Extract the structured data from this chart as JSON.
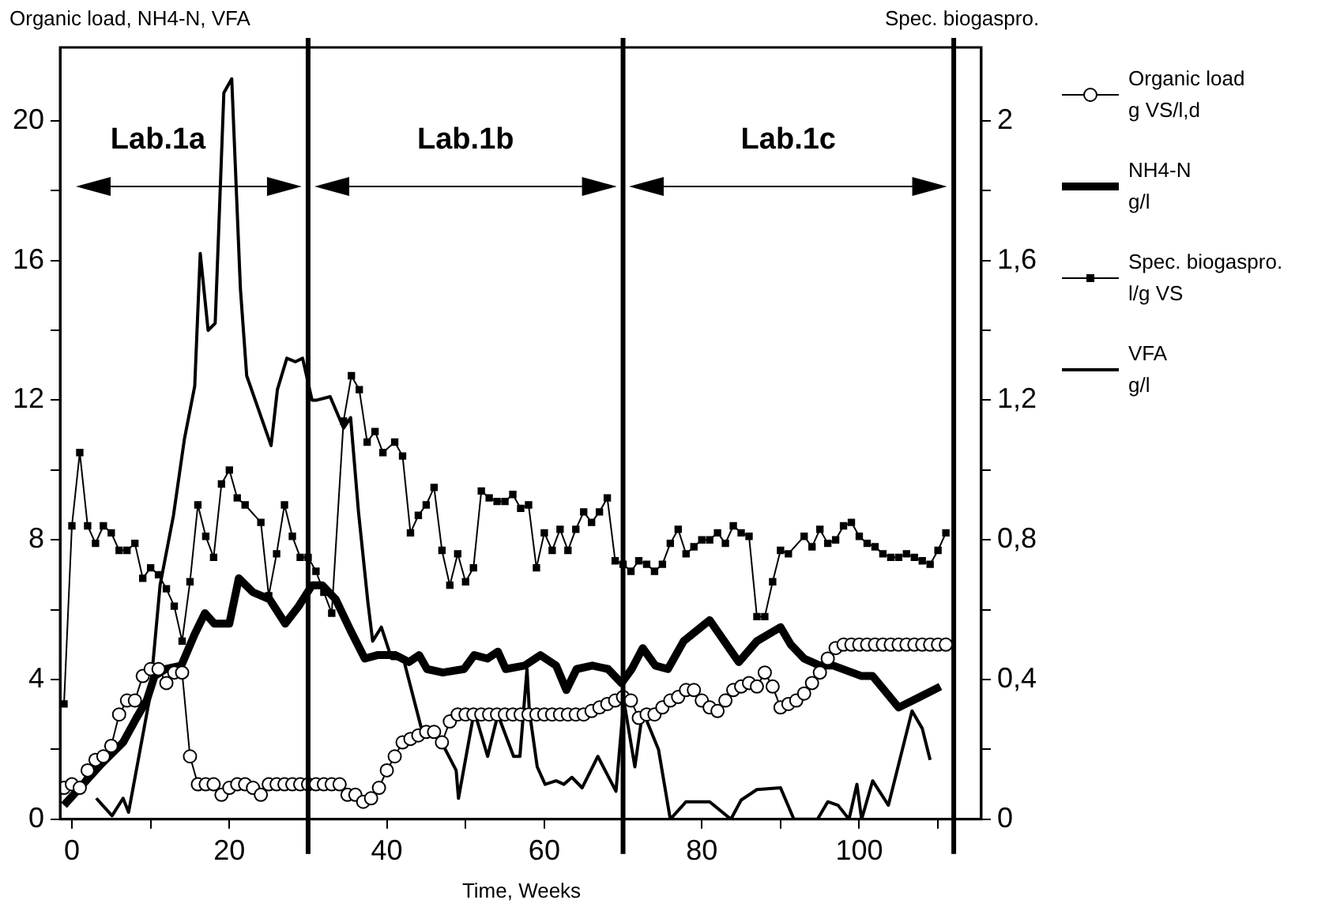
{
  "chart_data": {
    "type": "line",
    "xlabel": "Time, Weeks",
    "ylabel": "Organic load, NH4-N, VFA",
    "y2label": "Spec. biogaspro.",
    "xlim": [
      -1.5,
      115.5
    ],
    "ylim": [
      0,
      22.1
    ],
    "y2lim": [
      0,
      2.21
    ],
    "xticks": [
      0,
      {
        "value": 10,
        "label": null
      },
      20,
      {
        "value": 30,
        "label": null
      },
      40,
      {
        "value": 50,
        "label": null
      },
      60,
      {
        "value": 70,
        "label": null
      },
      80,
      {
        "value": 90,
        "label": null
      },
      100,
      {
        "value": 110,
        "label": null
      }
    ],
    "yticks": [
      0,
      {
        "value": 2,
        "label": null
      },
      4,
      {
        "value": 6,
        "label": null
      },
      8,
      {
        "value": 10,
        "label": null
      },
      12,
      {
        "value": 14,
        "label": null
      },
      16,
      {
        "value": 18,
        "label": null
      },
      20
    ],
    "y2ticks": [
      0,
      {
        "value": 0.2,
        "label": null
      },
      {
        "value": 0.4,
        "label": "0,4"
      },
      {
        "value": 0.6,
        "label": null
      },
      {
        "value": 0.8,
        "label": "0,8"
      },
      {
        "value": 1,
        "label": null
      },
      {
        "value": 1.2,
        "label": "1,2"
      },
      {
        "value": 1.4,
        "label": null
      },
      {
        "value": 1.6,
        "label": "1,6"
      },
      {
        "value": 1.8,
        "label": null
      },
      2
    ],
    "grid": false,
    "legend": "right",
    "line_style": "solid",
    "ref_lines": [
      {
        "axis": "x",
        "value": 30,
        "label": null
      },
      {
        "axis": "x",
        "value": 70,
        "label": null
      },
      {
        "axis": "x",
        "value": 112,
        "label": null
      }
    ],
    "annotations": [
      "Lab.1a",
      "Lab.1b",
      "Lab.1c"
    ],
    "series": [
      {
        "name": "Organic load\ng VS/l,d",
        "color": "#000000",
        "marker": "circle",
        "x": [
          -1,
          0,
          1,
          2,
          3,
          4,
          5,
          6,
          7,
          8,
          9,
          10,
          11,
          12,
          13,
          14,
          15,
          16,
          17,
          18,
          19,
          20,
          21,
          22,
          23,
          24,
          25,
          26,
          27,
          28,
          29,
          30,
          31,
          32,
          33,
          34,
          35,
          36,
          37,
          38,
          39,
          40,
          41,
          42,
          43,
          44,
          45,
          46,
          47,
          48,
          49,
          50,
          51,
          52,
          53,
          54,
          55,
          56,
          57,
          58,
          59,
          60,
          61,
          62,
          63,
          64,
          65,
          66,
          67,
          68,
          69,
          70,
          71,
          72,
          73,
          74,
          75,
          76,
          77,
          78,
          79,
          80,
          81,
          82,
          83,
          84,
          85,
          86,
          87,
          88,
          89,
          90,
          91,
          92,
          93,
          94,
          95,
          96,
          97,
          98,
          99,
          100,
          101,
          102,
          103,
          104,
          105,
          106,
          107,
          108,
          109,
          110,
          111
        ],
        "values": [
          0.9,
          1,
          0.9,
          1.4,
          1.7,
          1.8,
          2.1,
          3,
          3.4,
          3.4,
          4.1,
          4.3,
          4.3,
          3.9,
          4.2,
          4.2,
          1.8,
          1,
          1,
          1,
          0.7,
          0.9,
          1,
          1,
          0.9,
          0.7,
          1,
          1,
          1,
          1,
          1,
          1,
          1,
          1,
          1,
          1,
          0.7,
          0.7,
          0.5,
          0.6,
          0.9,
          1.4,
          1.8,
          2.2,
          2.3,
          2.4,
          2.5,
          2.5,
          2.2,
          2.8,
          3,
          3,
          3,
          3,
          3,
          3,
          3,
          3,
          3,
          3,
          3,
          3,
          3,
          3,
          3,
          3,
          3,
          3.1,
          3.2,
          3.3,
          3.4,
          3.5,
          3.4,
          2.9,
          3,
          3,
          3.2,
          3.4,
          3.5,
          3.7,
          3.7,
          3.4,
          3.2,
          3.1,
          3.4,
          3.7,
          3.8,
          3.9,
          3.8,
          4.2,
          3.8,
          3.2,
          3.3,
          3.4,
          3.6,
          3.9,
          4.2,
          4.6,
          4.9,
          5,
          5,
          5,
          5,
          5,
          5,
          5,
          5,
          5,
          5,
          5,
          5,
          5,
          5
        ]
      },
      {
        "name": "NH4-N\ng/l",
        "color": "#000000",
        "marker": "none",
        "x": [
          -1,
          3.8,
          6.5,
          8.2,
          9.5,
          10.5,
          11.9,
          13.9,
          15.6,
          16.9,
          18.1,
          20,
          21.2,
          23,
          25.1,
          27.1,
          28.8,
          30.5,
          31.8,
          33.5,
          35.4,
          37.2,
          38.8,
          41.1,
          42.8,
          44.1,
          45.1,
          47.1,
          49.8,
          51.1,
          52.8,
          54.1,
          55.1,
          57.5,
          59.5,
          61.5,
          62.8,
          64.1,
          66.1,
          68.1,
          69.8,
          71.1,
          72.5,
          74.1,
          75.7,
          77.7,
          81,
          84.7,
          87,
          90,
          91.3,
          93,
          95,
          96.7,
          100.3,
          101.7,
          105,
          107.7,
          110.3
        ],
        "values": [
          0.4,
          1.6,
          2.2,
          2.9,
          3.4,
          4.1,
          4.3,
          4.4,
          5.3,
          5.9,
          5.6,
          5.6,
          6.9,
          6.5,
          6.3,
          5.6,
          6.1,
          6.7,
          6.7,
          6.3,
          5.4,
          4.6,
          4.7,
          4.7,
          4.5,
          4.7,
          4.3,
          4.2,
          4.3,
          4.7,
          4.6,
          4.8,
          4.3,
          4.4,
          4.7,
          4.4,
          3.7,
          4.3,
          4.4,
          4.3,
          3.9,
          4.3,
          4.9,
          4.4,
          4.3,
          5.1,
          5.7,
          4.5,
          5.1,
          5.5,
          5,
          4.6,
          4.4,
          4.4,
          4.1,
          4.1,
          3.2,
          3.5,
          3.8
        ]
      },
      {
        "name": "Spec. biogaspro.\nl/g VS",
        "color": "#000000",
        "marker": "square",
        "axis": "y2",
        "x": [
          -1,
          0,
          1,
          2,
          3,
          4,
          5,
          6,
          7,
          8,
          9,
          10,
          11,
          12,
          13,
          14,
          15,
          16,
          17,
          18,
          19,
          20,
          21,
          22,
          24,
          25,
          26,
          27,
          28,
          29,
          30,
          31,
          32,
          33,
          34.5,
          35.5,
          36.5,
          37.5,
          38.5,
          39.5,
          41,
          42,
          43,
          44,
          45,
          46,
          47,
          48,
          49,
          50,
          51,
          52,
          53,
          54,
          55,
          56,
          57,
          58,
          59,
          60,
          61,
          62,
          63,
          64,
          65,
          66,
          67,
          68,
          69,
          70,
          71,
          72,
          73,
          74,
          75,
          76,
          77,
          78,
          79,
          80,
          81,
          82,
          83,
          84,
          85,
          86,
          87,
          88,
          89,
          90,
          91,
          93,
          94,
          95,
          96,
          97,
          98,
          99,
          100,
          101,
          102,
          103,
          104,
          105,
          106,
          107,
          108,
          109,
          110,
          111
        ],
        "values": [
          0.33,
          0.84,
          1.05,
          0.84,
          0.79,
          0.84,
          0.82,
          0.77,
          0.77,
          0.79,
          0.69,
          0.72,
          0.7,
          0.66,
          0.61,
          0.51,
          0.68,
          0.9,
          0.81,
          0.75,
          0.96,
          1,
          0.92,
          0.9,
          0.85,
          0.64,
          0.76,
          0.9,
          0.81,
          0.75,
          0.75,
          0.71,
          0.65,
          0.59,
          1.14,
          1.27,
          1.23,
          1.08,
          1.11,
          1.05,
          1.08,
          1.04,
          0.82,
          0.87,
          0.9,
          0.95,
          0.77,
          0.67,
          0.76,
          0.68,
          0.72,
          0.94,
          0.92,
          0.91,
          0.91,
          0.93,
          0.89,
          0.9,
          0.72,
          0.82,
          0.77,
          0.83,
          0.77,
          0.83,
          0.88,
          0.85,
          0.88,
          0.92,
          0.74,
          0.73,
          0.71,
          0.74,
          0.73,
          0.71,
          0.73,
          0.79,
          0.83,
          0.76,
          0.78,
          0.8,
          0.8,
          0.82,
          0.79,
          0.84,
          0.82,
          0.81,
          0.58,
          0.58,
          0.68,
          0.77,
          0.76,
          0.81,
          0.78,
          0.83,
          0.79,
          0.8,
          0.84,
          0.85,
          0.81,
          0.79,
          0.78,
          0.76,
          0.75,
          0.75,
          0.76,
          0.75,
          0.74,
          0.73,
          0.77,
          0.82
        ]
      },
      {
        "name": "VFA\ng/l",
        "color": "#000000",
        "marker": "none",
        "x": [
          3.1,
          5.1,
          6.5,
          7.2,
          9.9,
          11.2,
          12.9,
          14.3,
          15.6,
          16.3,
          17.3,
          18.2,
          19.3,
          20.3,
          21.4,
          22.2,
          25.3,
          26.1,
          27.3,
          28.4,
          29.3,
          30.5,
          31.1,
          32.8,
          34.5,
          35.4,
          36.4,
          37.6,
          38.2,
          39.3,
          40.6,
          42.1,
          44.5,
          45.5,
          46.5,
          48.8,
          49.1,
          51.1,
          52.8,
          54.1,
          56.1,
          56.9,
          57.8,
          58.1,
          59.1,
          60.1,
          61.5,
          62.5,
          63.5,
          64.8,
          66.8,
          69.1,
          70.1,
          71.5,
          72.5,
          74.5,
          76,
          78,
          81,
          83.7,
          85,
          87,
          90,
          91.7,
          94.7,
          96,
          97.3,
          98.7,
          99.7,
          100.3,
          101.7,
          103.7,
          106.7,
          108,
          109
        ],
        "values": [
          0.6,
          0.1,
          0.6,
          0.2,
          3.5,
          6.7,
          8.7,
          10.9,
          12.4,
          16.2,
          14,
          14.2,
          20.8,
          21.2,
          15.2,
          12.7,
          10.7,
          12.3,
          13.2,
          13.1,
          13.2,
          12,
          12,
          12.1,
          11.2,
          11.5,
          8.8,
          6.2,
          5.1,
          5.5,
          4.6,
          4.6,
          2.5,
          2.6,
          2.4,
          1.4,
          0.6,
          3.1,
          1.8,
          3,
          1.8,
          1.8,
          4.3,
          3.1,
          1.5,
          1,
          1.1,
          1,
          1.2,
          0.9,
          1.8,
          0.8,
          3.4,
          1.5,
          3.1,
          2,
          0,
          0.5,
          0.5,
          0,
          0.55,
          0.85,
          0.9,
          0,
          0,
          0.5,
          0.4,
          0,
          1,
          0,
          1.1,
          0.4,
          3.1,
          2.6,
          1.7
        ]
      }
    ]
  }
}
